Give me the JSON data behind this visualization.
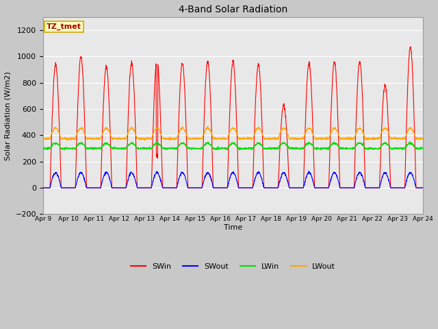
{
  "title": "4-Band Solar Radiation",
  "ylabel": "Solar Radiation (W/m2)",
  "xlabel": "Time",
  "label_text": "TZ_tmet",
  "ylim": [
    -200,
    1300
  ],
  "yticks": [
    -200,
    0,
    200,
    400,
    600,
    800,
    1000,
    1200
  ],
  "xtick_labels": [
    "Apr 9",
    "Apr 10",
    "Apr 11",
    "Apr 12",
    "Apr 13",
    "Apr 14",
    "Apr 15",
    "Apr 16",
    "Apr 17",
    "Apr 18",
    "Apr 19",
    "Apr 20",
    "Apr 21",
    "Apr 22",
    "Apr 23",
    "Apr 24"
  ],
  "colors": {
    "SWin": "#FF0000",
    "SWout": "#0000FF",
    "LWin": "#00DD00",
    "LWout": "#FFA500"
  },
  "plot_bg_color": "#E8E8E8",
  "fig_bg_color": "#C8C8C8",
  "grid_color": "#FFFFFF",
  "seed": 42,
  "peak_heights": [
    940,
    1000,
    920,
    950,
    970,
    950,
    960,
    960,
    940,
    630,
    950,
    960,
    960,
    780,
    1070
  ]
}
